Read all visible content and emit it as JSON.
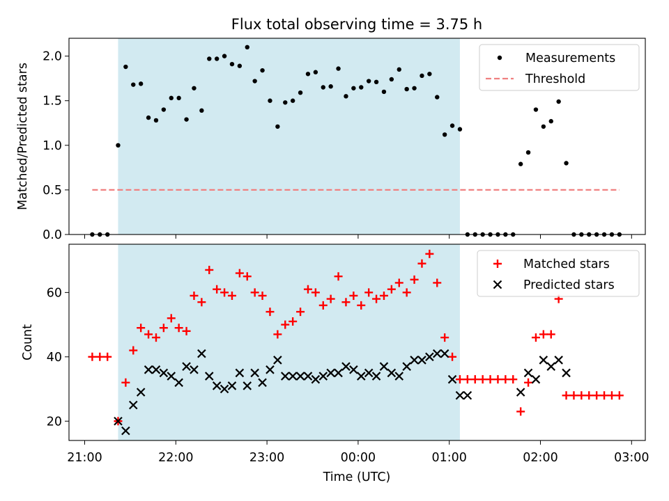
{
  "chart_data": [
    {
      "type": "scatter",
      "title": "Flux total observing time = 3.75 h",
      "ylabel": "Matched/Predicted stars",
      "xlabel": "",
      "ylim": [
        0,
        2.2
      ],
      "yticks": [
        "0.0",
        "0.5",
        "1.0",
        "1.5",
        "2.0"
      ],
      "ytick_values": [
        0,
        0.5,
        1.0,
        1.5,
        2.0
      ],
      "shaded_interval": [
        "21:22",
        "01:07"
      ],
      "shade_color": "#add8e6",
      "legend_position": "top-right",
      "grid": false,
      "series": [
        {
          "name": "Measurements",
          "marker": "dot",
          "color": "#000000",
          "x": [
            "21:05",
            "21:10",
            "21:15",
            "21:22",
            "21:27",
            "21:32",
            "21:37",
            "21:42",
            "21:47",
            "21:52",
            "21:57",
            "22:02",
            "22:07",
            "22:12",
            "22:17",
            "22:22",
            "22:27",
            "22:32",
            "22:37",
            "22:42",
            "22:47",
            "22:52",
            "22:57",
            "23:02",
            "23:07",
            "23:12",
            "23:17",
            "23:22",
            "23:27",
            "23:32",
            "23:37",
            "23:42",
            "23:47",
            "23:52",
            "23:57",
            "00:02",
            "00:07",
            "00:12",
            "00:17",
            "00:22",
            "00:27",
            "00:32",
            "00:37",
            "00:42",
            "00:47",
            "00:52",
            "00:57",
            "01:02",
            "01:07",
            "01:12",
            "01:17",
            "01:22",
            "01:27",
            "01:32",
            "01:37",
            "01:42",
            "01:47",
            "01:52",
            "01:57",
            "02:02",
            "02:07",
            "02:12",
            "02:17",
            "02:22",
            "02:27",
            "02:32",
            "02:37",
            "02:42",
            "02:47",
            "02:52"
          ],
          "y": [
            0,
            0,
            0,
            1.0,
            1.88,
            1.68,
            1.69,
            1.31,
            1.28,
            1.4,
            1.53,
            1.53,
            1.29,
            1.64,
            1.39,
            1.97,
            1.97,
            2.0,
            1.91,
            1.89,
            2.1,
            1.72,
            1.84,
            1.5,
            1.21,
            1.48,
            1.5,
            1.59,
            1.8,
            1.82,
            1.65,
            1.66,
            1.86,
            1.55,
            1.64,
            1.65,
            1.72,
            1.71,
            1.6,
            1.74,
            1.85,
            1.63,
            1.64,
            1.78,
            1.8,
            1.54,
            1.12,
            1.22,
            1.18,
            0,
            0,
            0,
            0,
            0,
            0,
            0,
            0.79,
            0.92,
            1.4,
            1.21,
            1.27,
            1.49,
            0.8,
            0,
            0,
            0,
            0,
            0,
            0,
            0
          ]
        },
        {
          "name": "Threshold",
          "marker": "dashed-line",
          "color": "#f08080",
          "x": [
            "21:05",
            "02:52"
          ],
          "y": [
            0.5,
            0.5
          ]
        }
      ]
    },
    {
      "type": "scatter",
      "title": "",
      "ylabel": "Count",
      "xlabel": "Time (UTC)",
      "ylim": [
        14,
        75
      ],
      "yticks": [
        "20",
        "40",
        "60"
      ],
      "ytick_values": [
        20,
        40,
        60
      ],
      "xticks": [
        "21:00",
        "22:00",
        "23:00",
        "00:00",
        "01:00",
        "02:00",
        "03:00"
      ],
      "shaded_interval": [
        "21:22",
        "01:07"
      ],
      "shade_color": "#add8e6",
      "legend_position": "top-right",
      "grid": false,
      "series": [
        {
          "name": "Matched stars",
          "marker": "plus",
          "color": "#ff0000",
          "x": [
            "21:05",
            "21:10",
            "21:15",
            "21:22",
            "21:27",
            "21:32",
            "21:37",
            "21:42",
            "21:47",
            "21:52",
            "21:57",
            "22:02",
            "22:07",
            "22:12",
            "22:17",
            "22:22",
            "22:27",
            "22:32",
            "22:37",
            "22:42",
            "22:47",
            "22:52",
            "22:57",
            "23:02",
            "23:07",
            "23:12",
            "23:17",
            "23:22",
            "23:27",
            "23:32",
            "23:37",
            "23:42",
            "23:47",
            "23:52",
            "23:57",
            "00:02",
            "00:07",
            "00:12",
            "00:17",
            "00:22",
            "00:27",
            "00:32",
            "00:37",
            "00:42",
            "00:47",
            "00:52",
            "00:57",
            "01:02",
            "01:07",
            "01:12",
            "01:17",
            "01:22",
            "01:27",
            "01:32",
            "01:37",
            "01:42",
            "01:47",
            "01:52",
            "01:57",
            "02:02",
            "02:07",
            "02:12",
            "02:17",
            "02:22",
            "02:27",
            "02:32",
            "02:37",
            "02:42",
            "02:47",
            "02:52"
          ],
          "y": [
            40,
            40,
            40,
            20,
            32,
            42,
            49,
            47,
            46,
            49,
            52,
            49,
            48,
            59,
            57,
            67,
            61,
            60,
            59,
            66,
            65,
            60,
            59,
            54,
            47,
            50,
            51,
            54,
            61,
            60,
            56,
            58,
            65,
            57,
            59,
            56,
            60,
            58,
            59,
            61,
            63,
            60,
            64,
            69,
            72,
            63,
            46,
            40,
            33,
            33,
            33,
            33,
            33,
            33,
            33,
            33,
            23,
            32,
            46,
            47,
            47,
            58,
            28,
            28,
            28,
            28,
            28,
            28,
            28,
            28
          ]
        },
        {
          "name": "Predicted stars",
          "marker": "x",
          "color": "#000000",
          "x": [
            "21:22",
            "21:27",
            "21:32",
            "21:37",
            "21:42",
            "21:47",
            "21:52",
            "21:57",
            "22:02",
            "22:07",
            "22:12",
            "22:17",
            "22:22",
            "22:27",
            "22:32",
            "22:37",
            "22:42",
            "22:47",
            "22:52",
            "22:57",
            "23:02",
            "23:07",
            "23:12",
            "23:17",
            "23:22",
            "23:27",
            "23:32",
            "23:37",
            "23:42",
            "23:47",
            "23:52",
            "23:57",
            "00:02",
            "00:07",
            "00:12",
            "00:17",
            "00:22",
            "00:27",
            "00:32",
            "00:37",
            "00:42",
            "00:47",
            "00:52",
            "00:57",
            "01:02",
            "01:07",
            "01:12",
            "01:47",
            "01:52",
            "01:57",
            "02:02",
            "02:07",
            "02:12",
            "02:17"
          ],
          "y": [
            20,
            17,
            25,
            29,
            36,
            36,
            35,
            34,
            32,
            37,
            36,
            41,
            34,
            31,
            30,
            31,
            35,
            31,
            35,
            32,
            36,
            39,
            34,
            34,
            34,
            34,
            33,
            34,
            35,
            35,
            37,
            36,
            34,
            35,
            34,
            37,
            35,
            34,
            37,
            39,
            39,
            40,
            41,
            41,
            33,
            28,
            28,
            29,
            35,
            33,
            39,
            37,
            39,
            35
          ]
        }
      ]
    }
  ]
}
